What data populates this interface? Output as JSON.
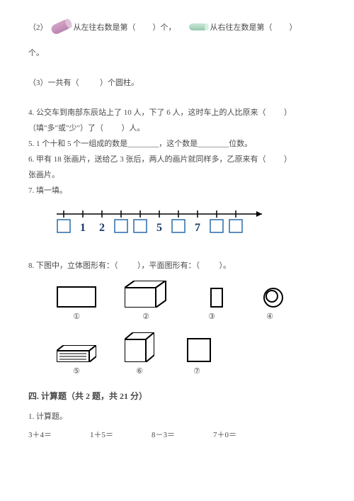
{
  "doc": {
    "font_size": 11,
    "text_color": "#4a4a4a",
    "bg_color": "#ffffff"
  },
  "q2": {
    "prefix": "（2）",
    "part1a": "从左往右数是第（",
    "part1b": "）个，",
    "part2a": "从右往左数是第（",
    "part2b": "）",
    "tail": "个。"
  },
  "q3": {
    "text": "（3）一共有（",
    "tail": "）个圆柱。"
  },
  "q4": {
    "l1": "4. 公交车到南部东辰站上了 10 人，下了 6 人，这时车上的人比原来（",
    "l1b": "）",
    "l2a": "（填\"多\"或\"少\"）了（",
    "l2b": "）人。"
  },
  "q5": {
    "a": "5. 1 个十和 5 个一组成的数是________，这个数是________位数。"
  },
  "q6": {
    "a": "6. 甲有 18 张画片，送给乙 3 张后，两人的画片就同样多，乙原来有（",
    "b": "）",
    "c": "张画片。"
  },
  "q7": {
    "title": "7. 填一填。",
    "numberline": {
      "visible_numbers": [
        "1",
        "2",
        "5",
        "7"
      ],
      "positions": [
        1,
        2,
        5,
        7
      ],
      "box_count": 10,
      "empty_boxes": [
        0,
        3,
        4,
        6,
        8,
        9
      ],
      "line_color": "#000000",
      "box_stroke": "#2a6aa8",
      "box_size": 18,
      "number_color": "#1a3a6a",
      "number_fontsize": 16
    }
  },
  "q8": {
    "text": "8. 下图中，立体图形有：（",
    "mid": "），平面图形有：（",
    "tail": "）。",
    "labels": [
      "①",
      "②",
      "③",
      "④",
      "⑤",
      "⑥",
      "⑦"
    ],
    "label_widths_row1": [
      56,
      60,
      46,
      38
    ],
    "label_widths_row2": [
      56,
      42,
      40
    ],
    "shapes": {
      "fill": "#ffffff",
      "stroke": "#000000",
      "stroke_width": 2
    }
  },
  "section4": {
    "title": "四. 计算题（共 2 题，共 21 分）",
    "q1": "1. 计算题。",
    "exprs": [
      "3＋4＝",
      "1＋5＝",
      "8－3＝",
      "7＋0＝"
    ]
  }
}
